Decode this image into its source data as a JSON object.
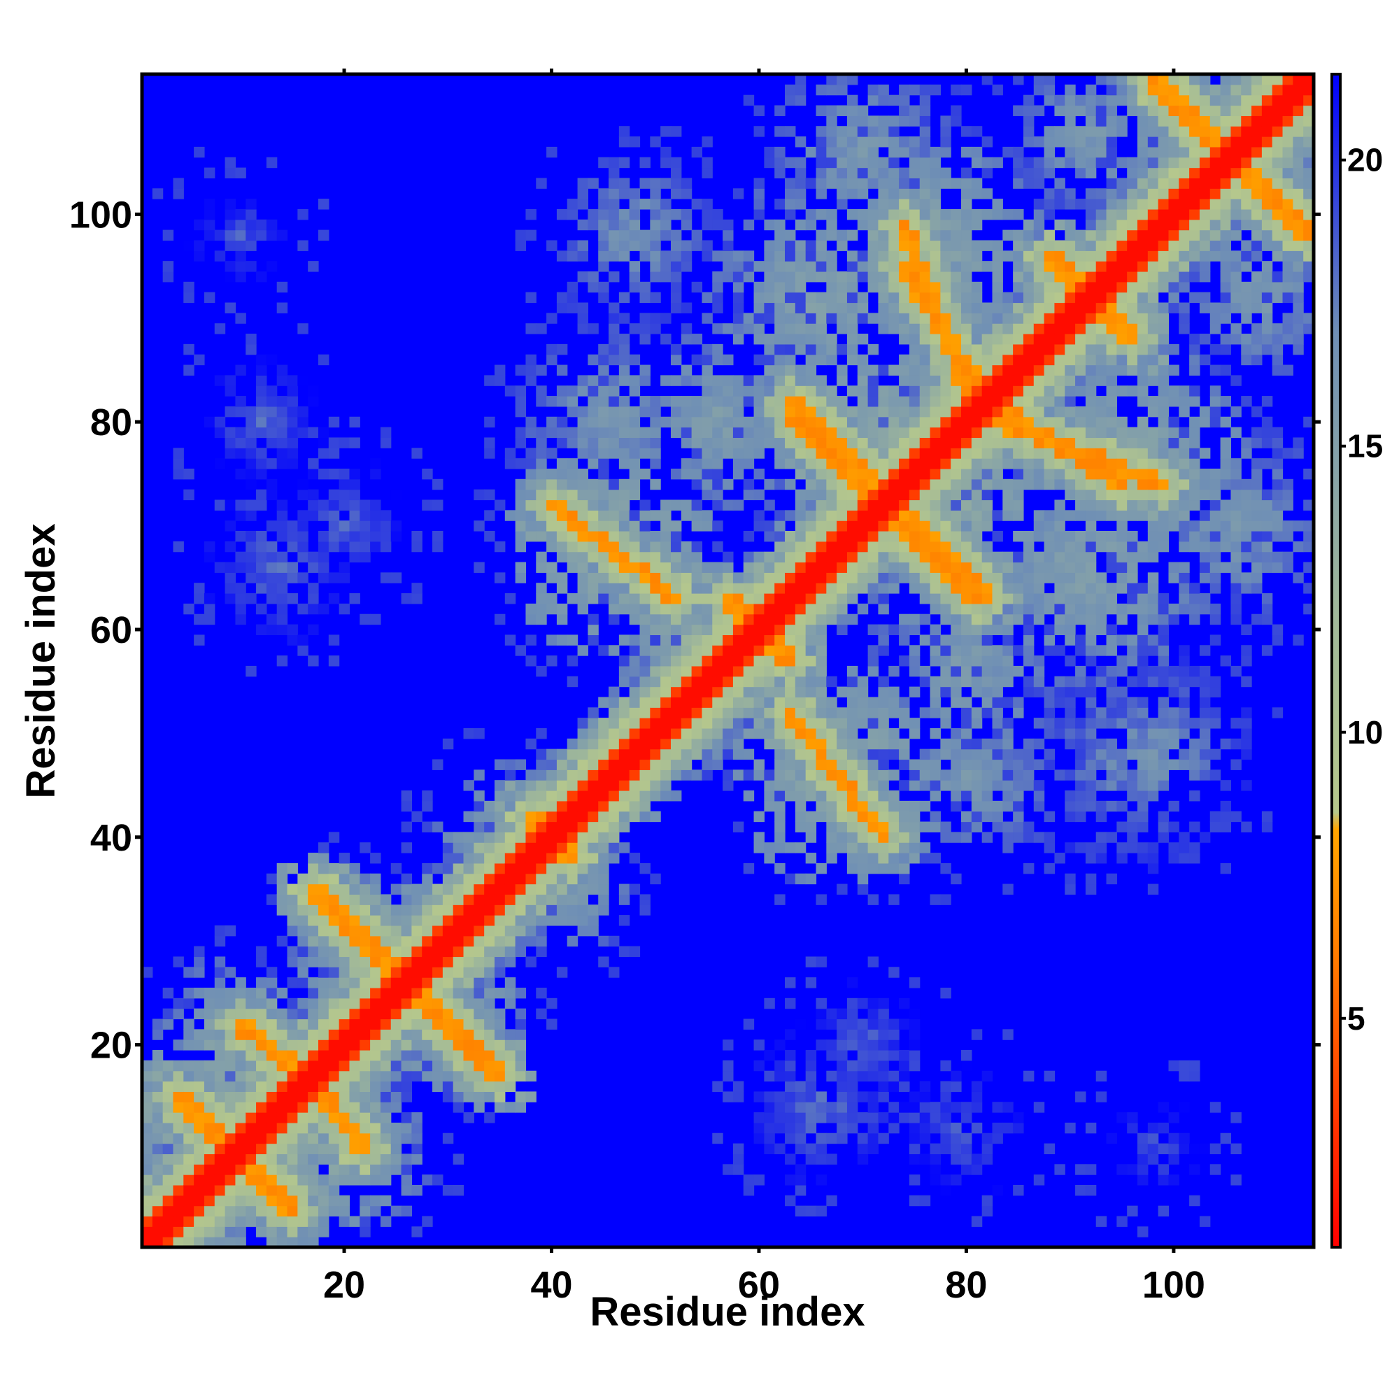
{
  "chart_data": {
    "type": "heatmap",
    "title": "",
    "xlabel": "Residue index",
    "ylabel": "Residue index",
    "n_residues": 113,
    "xlim": [
      1,
      113
    ],
    "ylim": [
      1,
      113
    ],
    "x_ticks": [
      20,
      40,
      60,
      80,
      100
    ],
    "y_ticks": [
      20,
      40,
      60,
      80,
      100
    ],
    "colorbar": {
      "range": [
        1,
        21.5
      ],
      "ticks": [
        5,
        10,
        15,
        20
      ],
      "stops": [
        {
          "value": 1.0,
          "color": "#ff0000"
        },
        {
          "value": 6.0,
          "color": "#ff7a00"
        },
        {
          "value": 8.3,
          "color": "#ffa500"
        },
        {
          "value": 8.6,
          "color": "#b6c88c"
        },
        {
          "value": 12.0,
          "color": "#a0b899"
        },
        {
          "value": 17.0,
          "color": "#6f8fb5"
        },
        {
          "value": 21.5,
          "color": "#0000ff"
        }
      ]
    },
    "background_value": 21.5,
    "description": "Residue-residue distance map (symmetric); near-diagonal distances are small (red), distant pairs large (blue)",
    "contact_segments": [
      {
        "from": [
          4,
          15
        ],
        "to": [
          15,
          4
        ]
      },
      {
        "from": [
          10,
          22
        ],
        "to": [
          19,
          14
        ]
      },
      {
        "from": [
          14,
          19
        ],
        "to": [
          22,
          10
        ]
      },
      {
        "from": [
          17,
          35
        ],
        "to": [
          26,
          26
        ]
      },
      {
        "from": [
          26,
          26
        ],
        "to": [
          35,
          17
        ]
      },
      {
        "from": [
          40,
          72
        ],
        "to": [
          52,
          63
        ]
      },
      {
        "from": [
          63,
          52
        ],
        "to": [
          72,
          40
        ]
      },
      {
        "from": [
          38,
          42
        ],
        "to": [
          42,
          38
        ]
      },
      {
        "from": [
          57,
          63
        ],
        "to": [
          63,
          57
        ]
      },
      {
        "from": [
          63,
          81
        ],
        "to": [
          71,
          73
        ]
      },
      {
        "from": [
          73,
          71
        ],
        "to": [
          81,
          63
        ]
      },
      {
        "from": [
          74,
          71
        ],
        "to": [
          82,
          63
        ]
      },
      {
        "from": [
          71,
          74
        ],
        "to": [
          63,
          82
        ]
      },
      {
        "from": [
          74,
          95
        ],
        "to": [
          82,
          82
        ]
      },
      {
        "from": [
          82,
          82
        ],
        "to": [
          95,
          74
        ]
      },
      {
        "from": [
          83,
          80
        ],
        "to": [
          99,
          74
        ]
      },
      {
        "from": [
          74,
          99
        ],
        "to": [
          80,
          83
        ]
      },
      {
        "from": [
          98,
          113
        ],
        "to": [
          113,
          98
        ]
      },
      {
        "from": [
          88,
          96
        ],
        "to": [
          92,
          92
        ]
      },
      {
        "from": [
          96,
          88
        ],
        "to": [
          92,
          92
        ]
      }
    ],
    "cloud_blobs": [
      {
        "center": [
          12,
          12
        ],
        "radius": 13,
        "level": 12.5
      },
      {
        "center": [
          26,
          26
        ],
        "radius": 11,
        "level": 13
      },
      {
        "center": [
          20,
          10
        ],
        "radius": 9,
        "level": 14
      },
      {
        "center": [
          10,
          20
        ],
        "radius": 9,
        "level": 14
      },
      {
        "center": [
          30,
          22
        ],
        "radius": 8,
        "level": 14
      },
      {
        "center": [
          22,
          30
        ],
        "radius": 8,
        "level": 14
      },
      {
        "center": [
          46,
          68
        ],
        "radius": 11,
        "level": 13
      },
      {
        "center": [
          68,
          46
        ],
        "radius": 11,
        "level": 13
      },
      {
        "center": [
          56,
          80
        ],
        "radius": 10,
        "level": 14.5
      },
      {
        "center": [
          80,
          56
        ],
        "radius": 10,
        "level": 14.5
      },
      {
        "center": [
          48,
          98
        ],
        "radius": 9,
        "level": 15.5
      },
      {
        "center": [
          98,
          48
        ],
        "radius": 9,
        "level": 15.5
      },
      {
        "center": [
          72,
          78
        ],
        "radius": 12,
        "level": 13
      },
      {
        "center": [
          78,
          72
        ],
        "radius": 12,
        "level": 13
      },
      {
        "center": [
          76,
          96
        ],
        "radius": 12,
        "level": 13.5
      },
      {
        "center": [
          96,
          76
        ],
        "radius": 12,
        "level": 13.5
      },
      {
        "center": [
          92,
          66
        ],
        "radius": 12,
        "level": 14
      },
      {
        "center": [
          66,
          92
        ],
        "radius": 12,
        "level": 14
      },
      {
        "center": [
          104,
          108
        ],
        "radius": 10,
        "level": 13.5
      },
      {
        "center": [
          108,
          104
        ],
        "radius": 10,
        "level": 13.5
      },
      {
        "center": [
          70,
          106
        ],
        "radius": 10,
        "level": 15
      },
      {
        "center": [
          106,
          70
        ],
        "radius": 10,
        "level": 15
      },
      {
        "center": [
          92,
          108
        ],
        "radius": 9,
        "level": 15
      },
      {
        "center": [
          108,
          92
        ],
        "radius": 9,
        "level": 15
      },
      {
        "center": [
          80,
          46
        ],
        "radius": 10,
        "level": 15
      },
      {
        "center": [
          46,
          80
        ],
        "radius": 10,
        "level": 15
      },
      {
        "center": [
          96,
          48
        ],
        "radius": 12,
        "level": 16
      },
      {
        "center": [
          66,
          14
        ],
        "radius": 8,
        "level": 17
      },
      {
        "center": [
          14,
          66
        ],
        "radius": 8,
        "level": 17
      },
      {
        "center": [
          12,
          80
        ],
        "radius": 7,
        "level": 17.5
      },
      {
        "center": [
          80,
          12
        ],
        "radius": 7,
        "level": 17.5
      },
      {
        "center": [
          20,
          70
        ],
        "radius": 7,
        "level": 17.5
      },
      {
        "center": [
          70,
          20
        ],
        "radius": 7,
        "level": 17.5
      },
      {
        "center": [
          98,
          10
        ],
        "radius": 6,
        "level": 18
      },
      {
        "center": [
          10,
          98
        ],
        "radius": 6,
        "level": 18
      },
      {
        "center": [
          40,
          36
        ],
        "radius": 8,
        "level": 14
      },
      {
        "center": [
          36,
          40
        ],
        "radius": 8,
        "level": 14
      },
      {
        "center": [
          58,
          54
        ],
        "radius": 8,
        "level": 13.5
      },
      {
        "center": [
          54,
          58
        ],
        "radius": 8,
        "level": 13.5
      }
    ]
  }
}
